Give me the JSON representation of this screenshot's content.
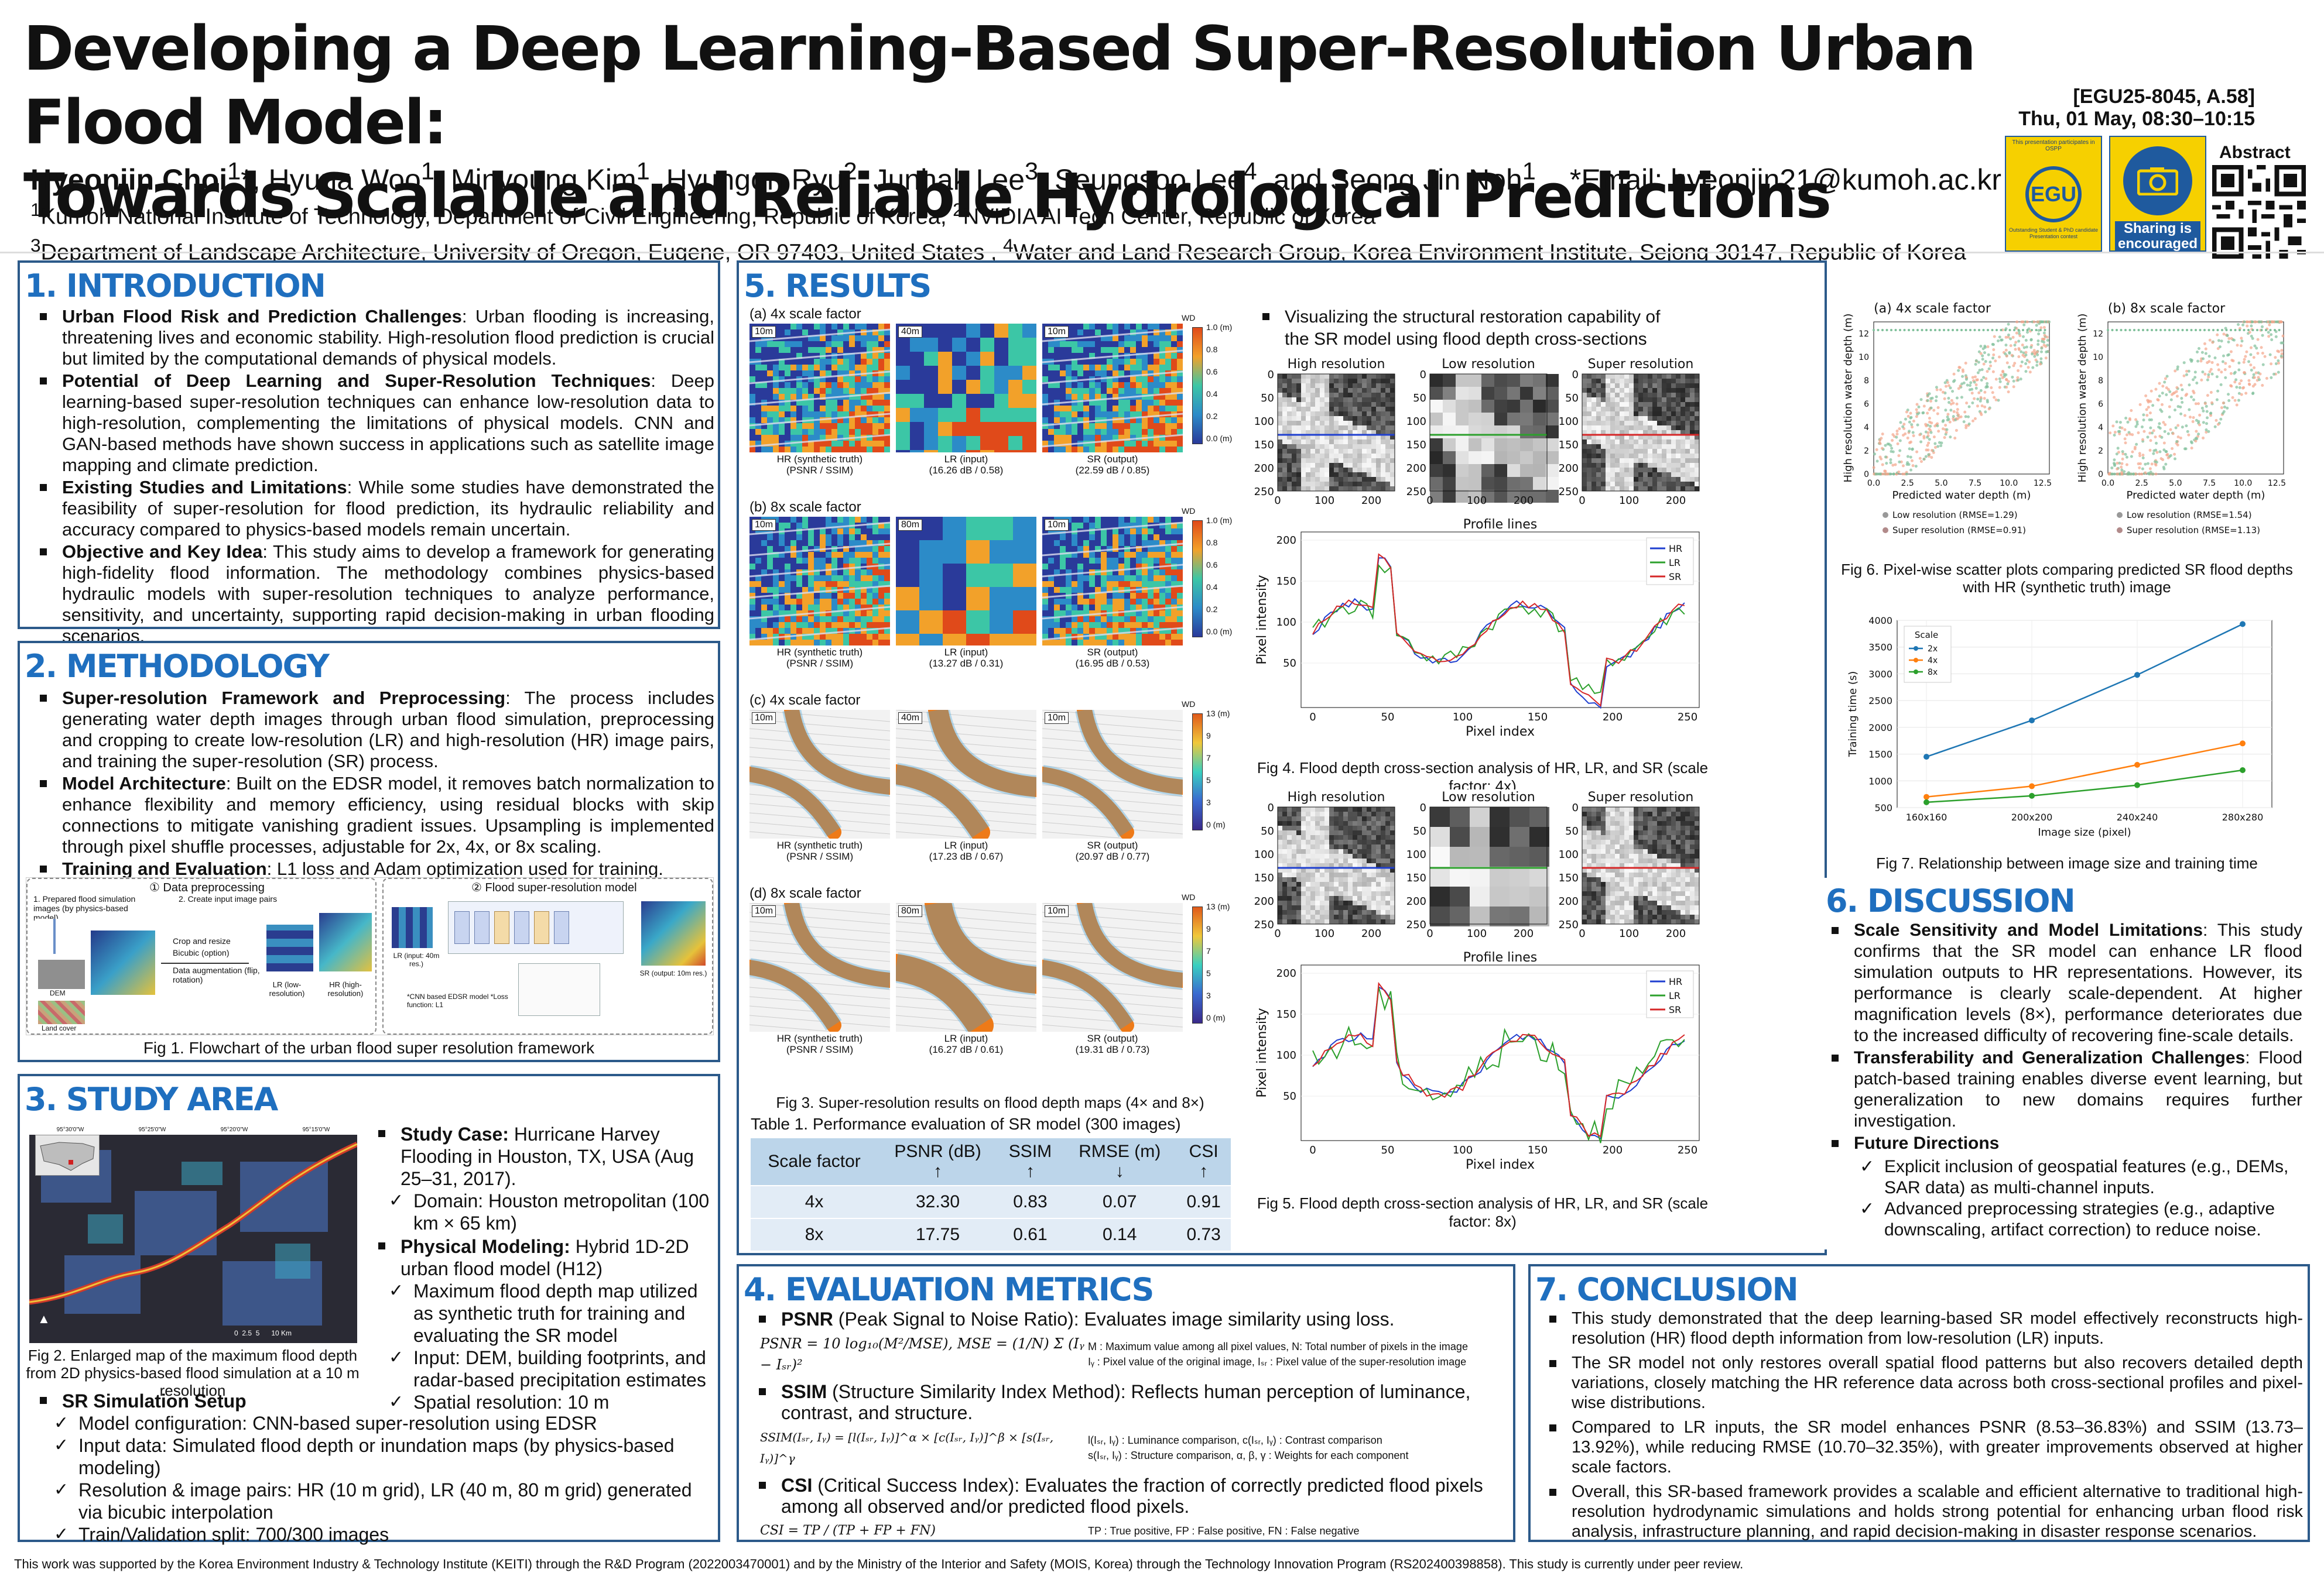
{
  "header": {
    "title_line1": "Developing a Deep Learning-Based Super-Resolution Urban Flood Model:",
    "title_line2": "Towards Scalable and Reliable Hydrological Predictions",
    "authors_html": "<b>Hyeonjin Choi</b><sup>1</sup>*, Hyuna Woo<sup>1</sup>, Minyoung Kim<sup>1</sup>, Hyungon Ryu<sup>2</sup>, Junhak Lee<sup>3</sup>, Seungsoo Lee<sup>4</sup>, and Seong Jin Noh<sup>1</sup>",
    "email": "*Email: hyeonjin21@kumoh.ac.kr",
    "affil1_html": "<sup>1</sup>Kumoh National Institute of Technology, Department of Civil Engineering, Republic of Korea, <sup>2</sup>NVIDIA AI Tech Center, Republic of Korea",
    "affil2_html": "<sup>3</sup>Department of Landscape Architecture, University of Oregon, Eugene, OR 97403, United States , <sup>4</sup>Water and Land Research Group, Korea Environment Institute, Sejong 30147, Republic of Korea",
    "session_id": "[EGU25-8045, A.58]",
    "session_time": "Thu, 01 May, 08:30–10:15",
    "abstract_label": "Abstract",
    "egu_badge_top": "This presentation participates in OSPP",
    "egu_badge_logo": "EGU",
    "egu_badge_bottom": "Outstanding Student & PhD candidate Presentation contest",
    "share_badge_text": "Sharing is encouraged"
  },
  "intro": {
    "title": "1. INTRODUCTION",
    "items": [
      {
        "head": "Urban Flood Risk and Prediction Challenges",
        "text": ": Urban flooding is increasing, threatening lives and economic stability. High-resolution flood prediction is crucial but limited by the computational demands of physical models."
      },
      {
        "head": "Potential of Deep Learning and Super-Resolution Techniques",
        "text": ": Deep learning-based super-resolution techniques can enhance low-resolution data to high-resolution, complementing the limitations of physical models. CNN and GAN-based methods have shown success in applications such as satellite image mapping and climate prediction."
      },
      {
        "head": "Existing Studies and Limitations",
        "text": ": While some studies have demonstrated the feasibility of super-resolution for flood prediction, its hydraulic reliability and accuracy compared to physics-based models remain uncertain."
      },
      {
        "head": "Objective and Key Idea",
        "text": ": This study aims to develop a framework for generating high-fidelity flood information. The methodology combines physics-based hydraulic models with super-resolution techniques to analyze performance, sensitivity, and uncertainty, supporting rapid decision-making in urban flooding scenarios."
      }
    ]
  },
  "methodology": {
    "title": "2. METHODOLOGY",
    "items": [
      {
        "head": "Super-resolution Framework and Preprocessing",
        "text": ": The process includes generating water depth images through urban flood simulation, preprocessing and cropping to create low-resolution (LR) and high-resolution (HR) image pairs, and training the super-resolution (SR) process."
      },
      {
        "head": "Model Architecture",
        "text": ": Built on the EDSR model, it removes batch normalization to enhance flexibility and memory efficiency, using residual blocks with skip connections to mitigate vanishing gradient issues. Upsampling is implemented through pixel shuffle processes, adjustable for 2x, 4x, or 8x scaling."
      },
      {
        "head": "Training and Evaluation",
        "text": ": L1 loss and Adam optimization used for training."
      }
    ],
    "fig1_left_title": "① Data preprocessing",
    "fig1_right_title": "② Flood super-resolution model",
    "fig1_step1": "1. Prepared flood simulation images (by physics-based model)",
    "fig1_step2": "2. Create input image pairs",
    "fig1_crop": "Crop and resize",
    "fig1_bicubic": "Bicubic (option)",
    "fig1_aug": "Data augmentation (flip, rotation)",
    "fig1_lr": "LR (low-resolution)",
    "fig1_hr": "HR (high-resolution)",
    "fig1_dem": "DEM",
    "fig1_land": "Land cover",
    "fig1_lr_in": "LR (input: 40m res.)",
    "fig1_sr_out": "SR (output: 10m res.)",
    "fig1_note": "*CNN based EDSR model *Loss function: L1",
    "fig1_caption": "Fig 1. Flowchart of the urban flood super resolution framework"
  },
  "study": {
    "title": "3. STUDY AREA",
    "case_head": "Study Case:",
    "case_text": " Hurricane Harvey Flooding in Houston, TX, USA (Aug 25–31, 2017).",
    "case_sub": [
      "Domain: Houston metropolitan (100 km × 65 km)"
    ],
    "phys_head": "Physical Modeling:",
    "phys_text": " Hybrid 1D-2D urban flood model (H12)",
    "phys_sub": [
      "Maximum flood depth map utilized as synthetic truth for training and evaluating the SR model",
      "Input: DEM, building footprints, and radar-based precipitation estimates",
      "Spatial resolution: 10 m"
    ],
    "fig2_caption": "Fig 2. Enlarged map of the maximum flood depth from 2D physics-based flood simulation at a 10 m resolution",
    "sr_head": "SR Simulation Setup",
    "sr_sub": [
      "Model configuration: CNN-based super-resolution using EDSR",
      "Input data: Simulated flood depth or inundation maps (by physics-based modeling)",
      "Resolution & image pairs: HR (10 m grid), LR (40 m, 80 m grid) generated via bicubic interpolation",
      "Train/Validation split: 700/300 images"
    ],
    "map_lon_ticks": [
      "95°30'0\"W",
      "95°25'0\"W",
      "95°20'0\"W",
      "95°15'0\"W"
    ],
    "map_lat_ticks": [
      "29°50'0\"N",
      "29°45'0\"N",
      "29°40'0\"N"
    ],
    "map_scale": "0  2.5  5      10 Km"
  },
  "eval": {
    "title": "4. EVALUATION METRICS",
    "psnr_head": "PSNR",
    "psnr_text": " (Peak Signal to Noise Ratio): Evaluates image similarity using loss.",
    "psnr_eq": "PSNR = 10 log₁₀(M²/MSE),  MSE = (1/N) Σ (Iᵧ − Iₛᵣ)²",
    "psnr_note1": "M : Maximum value among all pixel values, N: Total number of pixels in the image",
    "psnr_note2": "Iᵧ : Pixel value of the original image, Iₛᵣ : Pixel value of the super-resolution image",
    "ssim_head": "SSIM",
    "ssim_text": " (Structure Similarity Index Method): Reflects human perception of luminance, contrast, and structure.",
    "ssim_eq": "SSIM(Iₛᵣ, Iᵧ) = [l(Iₛᵣ, Iᵧ)]^α × [c(Iₛᵣ, Iᵧ)]^β × [s(Iₛᵣ, Iᵧ)]^γ",
    "ssim_note1": "l(Iₛᵣ, Iᵧ) : Luminance comparison, c(Iₛᵣ, Iᵧ) : Contrast comparison",
    "ssim_note2": "s(Iₛᵣ, Iᵧ) : Structure comparison, α, β, γ : Weights for each component",
    "csi_head": "CSI",
    "csi_text": " (Critical Success Index): Evaluates the fraction of correctly predicted flood pixels among all observed and/or predicted flood pixels.",
    "csi_eq": "CSI = TP / (TP + FP + FN)",
    "csi_note": "TP : True positive, FP : False positive, FN : False negative"
  },
  "results": {
    "title": "5. RESULTS",
    "fig3_panels": [
      {
        "label": "(a) 4x scale factor",
        "lr_res": "40m",
        "caps": [
          "HR (synthetic truth)\n(PSNR / SSIM)",
          "LR (input)\n(16.26 dB / 0.58)",
          "SR (output)\n(22.59 dB / 0.85)"
        ],
        "cb_ticks": [
          "1.0 (m)",
          "0.8",
          "0.6",
          "0.4",
          "0.2",
          "0.0 (m)"
        ],
        "style": "wd"
      },
      {
        "label": "(b) 8x scale factor",
        "lr_res": "80m",
        "caps": [
          "HR (synthetic truth)\n(PSNR / SSIM)",
          "LR (input)\n(13.27 dB / 0.31)",
          "SR (output)\n(16.95 dB / 0.53)"
        ],
        "cb_ticks": [
          "1.0 (m)",
          "0.8",
          "0.6",
          "0.4",
          "0.2",
          "0.0 (m)"
        ],
        "style": "wd"
      },
      {
        "label": "(c) 4x scale factor",
        "lr_res": "40m",
        "caps": [
          "HR (synthetic truth)\n(PSNR / SSIM)",
          "LR (input)\n(17.23 dB / 0.67)",
          "SR (output)\n(20.97 dB / 0.77)"
        ],
        "cb_ticks": [
          "13 (m)",
          "9",
          "7",
          "5",
          "3",
          "0 (m)"
        ],
        "style": "river"
      },
      {
        "label": "(d) 8x scale factor",
        "lr_res": "80m",
        "caps": [
          "HR (synthetic truth)\n(PSNR / SSIM)",
          "LR (input)\n(16.27 dB / 0.61)",
          "SR (output)\n(19.31 dB / 0.73)"
        ],
        "cb_ticks": [
          "13 (m)",
          "9",
          "7",
          "5",
          "3",
          "0 (m)"
        ],
        "style": "river"
      }
    ],
    "hr_res": "10m",
    "sr_res": "10m",
    "wd_label": "WD",
    "fig3_caption": "Fig 3. Super-resolution results on flood depth maps (4× and 8×)",
    "table_title": "Table 1. Performance evaluation of SR model (300 images)",
    "table_headers": [
      "Scale factor",
      "PSNR (dB)\n↑",
      "SSIM\n↑",
      "RMSE (m)\n↓",
      "CSI\n↑"
    ],
    "table_rows": [
      [
        "4x",
        "32.30",
        "0.83",
        "0.07",
        "0.91"
      ],
      [
        "8x",
        "17.75",
        "0.61",
        "0.14",
        "0.73"
      ]
    ],
    "vis_text": "Visualizing the structural restoration capability of the SR model using flood depth cross-sections",
    "cs_titles": [
      "High resolution",
      "Low resolution",
      "Super resolution"
    ],
    "cs_y_ticks": [
      "0",
      "50",
      "100",
      "150",
      "200",
      "250"
    ],
    "cs_x_ticks": [
      "0",
      "100",
      "200"
    ],
    "profile_title": "Profile lines",
    "profile_ylabel": "Pixel intensity",
    "profile_xlabel": "Pixel index",
    "profile_x_ticks": [
      "0",
      "50",
      "100",
      "150",
      "200",
      "250"
    ],
    "fig4_caption": "Fig 4. Flood depth cross-section analysis of HR, LR, and SR (scale factor: 4x)",
    "fig5_caption": "Fig 5. Flood depth cross-section analysis of HR, LR, and SR (scale factor: 8x)",
    "legend": [
      "HR",
      "LR",
      "SR"
    ],
    "fig6": {
      "a_label": "(a) 4x scale factor",
      "b_label": "(b) 8x scale factor",
      "xlabel": "Predicted water depth (m)",
      "ylabel": "High resolution water depth (m)",
      "x_ticks": [
        "0.0",
        "2.5",
        "5.0",
        "7.5",
        "10.0",
        "12.5"
      ],
      "y_ticks": [
        "0",
        "2",
        "4",
        "6",
        "8",
        "10",
        "12"
      ],
      "a_legend": [
        "Low resolution (RMSE=1.29)",
        "Super resolution (RMSE=0.91)"
      ],
      "b_legend": [
        "Low resolution (RMSE=1.54)",
        "Super resolution (RMSE=1.13)"
      ],
      "caption": "Fig 6. Pixel-wise scatter plots comparing predicted SR flood depths with HR (synthetic truth) image"
    },
    "fig7_caption": "Fig 7. Relationship between image size and training time"
  },
  "chart_data": [
    {
      "type": "line",
      "title": "",
      "xlabel": "Image size (pixel)",
      "ylabel": "Training time (s)",
      "categories": [
        "160x160",
        "200x200",
        "240x240",
        "280x280"
      ],
      "ylim": [
        500,
        4000
      ],
      "y_ticks": [
        500,
        1000,
        1500,
        2000,
        2500,
        3000,
        3500,
        4000
      ],
      "legend_title": "Scale",
      "legend_position": "top-left",
      "grid": true,
      "series": [
        {
          "name": "2x",
          "color": "#1f77b4",
          "values": [
            1450,
            2130,
            2980,
            3930
          ]
        },
        {
          "name": "4x",
          "color": "#ff7f0e",
          "values": [
            700,
            900,
            1300,
            1700
          ]
        },
        {
          "name": "8x",
          "color": "#2ca02c",
          "values": [
            600,
            720,
            920,
            1200
          ]
        }
      ]
    }
  ],
  "discussion": {
    "title": "6. DISCUSSION",
    "items": [
      {
        "head": "Scale Sensitivity and Model Limitations",
        "text": ": This study confirms that the SR model can enhance LR flood simulation outputs to HR representations. However, its performance is clearly scale-dependent. At higher magnification levels (8×), performance deteriorates due to the increased difficulty of recovering fine-scale details."
      },
      {
        "head": "Transferability and Generalization Challenges",
        "text": ": Flood patch-based training enables diverse event learning, but generalization to new domains requires further investigation."
      },
      {
        "head": "Future Directions",
        "text": ""
      }
    ],
    "future": [
      "Explicit inclusion of geospatial features (e.g., DEMs, SAR data) as multi-channel inputs.",
      "Advanced preprocessing strategies (e.g., adaptive downscaling, artifact correction) to reduce noise."
    ]
  },
  "conclusion": {
    "title": "7. CONCLUSION",
    "items": [
      "This study demonstrated that the deep learning-based SR model effectively reconstructs high-resolution (HR) flood depth information from low-resolution (LR) inputs.",
      "The SR model not only restores overall spatial flood patterns but also recovers detailed depth variations, closely matching the HR reference data across both cross-sectional profiles and pixel-wise distributions.",
      "Compared to LR inputs, the SR model enhances PSNR (8.53–36.83%) and SSIM (13.73–13.92%), while reducing RMSE (10.70–32.35%), with greater improvements observed at higher scale factors.",
      "Overall, this SR-based framework provides a scalable and efficient alternative to traditional high-resolution hydrodynamic simulations and holds strong potential for enhancing urban flood risk analysis, infrastructure planning, and rapid decision-making in disaster response scenarios."
    ]
  },
  "footer": "This work was supported by the Korea Environment Industry & Technology Institute (KEITI) through the R&D Program (2022003470001) and by the Ministry of the Interior and Safety (MOIS, Korea) through the Technology Innovation Program (RS202400398858). This study is currently under peer review."
}
